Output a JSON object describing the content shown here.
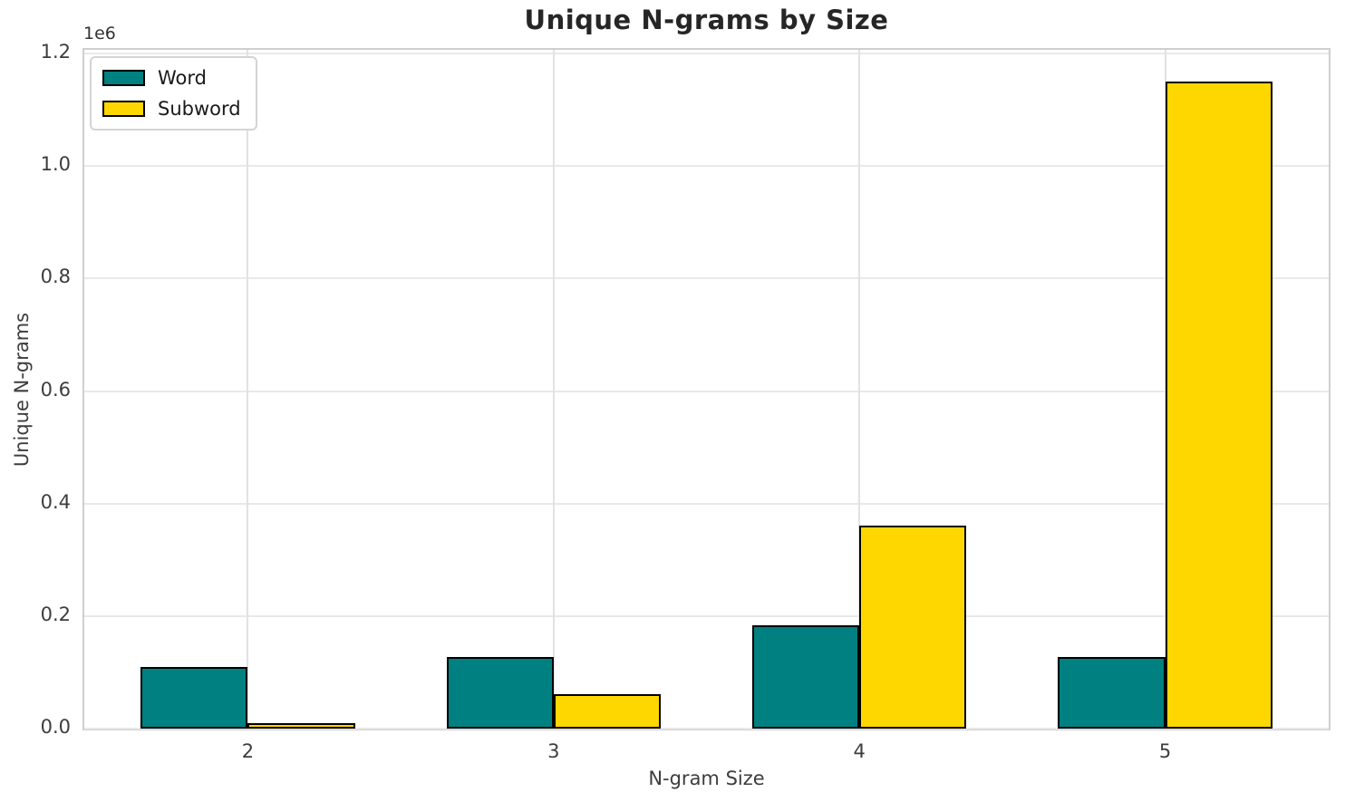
{
  "title": "Unique N-grams by Size",
  "offset_text": "1e6",
  "chart_data": {
    "type": "bar",
    "title": "Unique N-grams by Size",
    "xlabel": "N-gram Size",
    "ylabel": "Unique N-grams",
    "categories": [
      "2",
      "3",
      "4",
      "5"
    ],
    "series": [
      {
        "name": "Word",
        "color": "#008080",
        "values": [
          110000,
          127000,
          184000,
          128000
        ]
      },
      {
        "name": "Subword",
        "color": "#FFD700",
        "values": [
          9000,
          61000,
          361000,
          1150000
        ]
      }
    ],
    "ylim": [
      0,
      1200000
    ],
    "y_scale_label": "1e6",
    "yticks": [
      0.0,
      0.2,
      0.4,
      0.6,
      0.8,
      1.0,
      1.2
    ],
    "ytick_labels": [
      "0.0",
      "0.2",
      "0.4",
      "0.6",
      "0.8",
      "1.0",
      "1.2"
    ],
    "grid": true,
    "legend_position": "upper left",
    "bar_edge_color": "#000000",
    "bar_width_fraction": 0.35
  }
}
